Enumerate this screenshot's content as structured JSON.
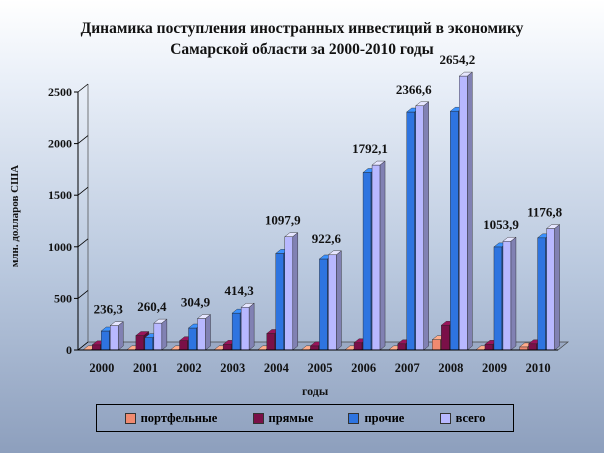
{
  "chart_data": {
    "type": "bar",
    "title_line1": "Динамика поступления иностранных инвестиций в экономику",
    "title_line2": "Самарской области за 2000-2010 годы",
    "xlabel": "годы",
    "ylabel": "млн. долларов США",
    "ylim": [
      0,
      2500
    ],
    "yticks": [
      0,
      500,
      1000,
      1500,
      2000,
      2500
    ],
    "categories": [
      "2000",
      "2001",
      "2002",
      "2003",
      "2004",
      "2005",
      "2006",
      "2007",
      "2008",
      "2009",
      "2010"
    ],
    "series": [
      {
        "name": "портфельные",
        "color": "#f08a70",
        "values": [
          2,
          2,
          2,
          2,
          2,
          2,
          2,
          2,
          100,
          2,
          30
        ]
      },
      {
        "name": "прямые",
        "color": "#7a1048",
        "values": [
          50,
          140,
          90,
          55,
          160,
          40,
          70,
          60,
          240,
          55,
          60
        ]
      },
      {
        "name": "прочие",
        "color": "#2e74e0",
        "values": [
          184,
          120,
          213,
          357,
          936,
          882,
          1720,
          2306,
          2314,
          999,
          1087
        ]
      },
      {
        "name": "всего",
        "color": "#b8b8ff",
        "values": [
          236.3,
          260.4,
          304.9,
          414.3,
          1097.9,
          922.6,
          1792.1,
          2366.6,
          2654.2,
          1053.9,
          1176.8
        ]
      }
    ],
    "data_labels": [
      "236,3",
      "260,4",
      "304,9",
      "414,3",
      "1097,9",
      "922,6",
      "1792,1",
      "2366,6",
      "2654,2",
      "1053,9",
      "1176,8"
    ],
    "legend_position": "bottom",
    "grid": false
  }
}
